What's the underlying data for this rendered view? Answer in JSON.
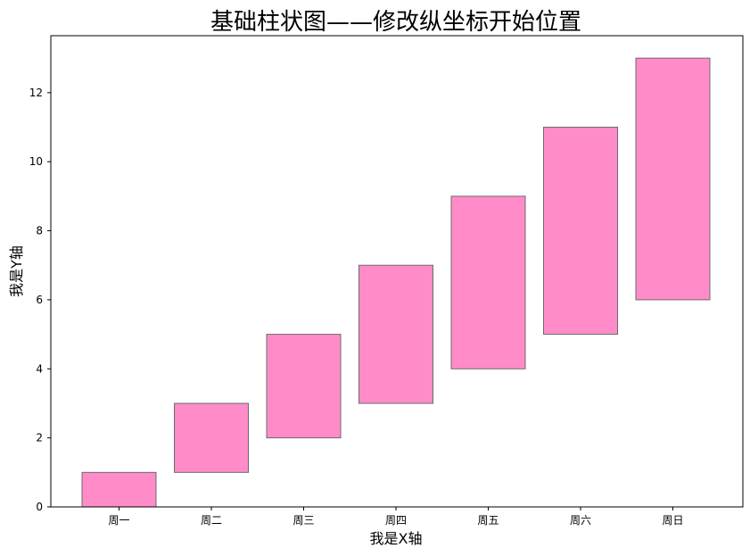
{
  "chart_data": {
    "type": "bar",
    "title": "基础柱状图——修改纵坐标开始位置",
    "xlabel": "我是X轴",
    "ylabel": "我是Y轴",
    "categories": [
      "周一",
      "周二",
      "周三",
      "周四",
      "周五",
      "周六",
      "周日"
    ],
    "bottoms": [
      0,
      1,
      2,
      3,
      4,
      5,
      6
    ],
    "values": [
      1,
      2,
      3,
      4,
      5,
      6,
      7
    ],
    "tops": [
      1,
      3,
      5,
      7,
      9,
      11,
      13
    ],
    "ylim": [
      0,
      13.65
    ],
    "yticks": [
      0,
      2,
      4,
      6,
      8,
      10,
      12
    ],
    "grid": false,
    "bar_color": "#ff8cc8",
    "bar_edge_color": "#6b6b6b"
  }
}
